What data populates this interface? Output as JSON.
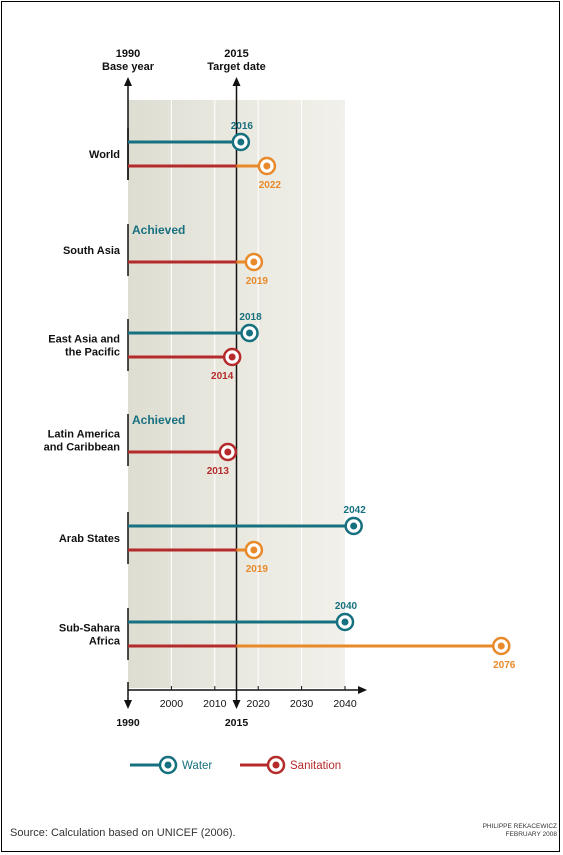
{
  "chart_data": {
    "type": "line",
    "title": "",
    "start_marker": {
      "year": "1990",
      "label": "Base year"
    },
    "target_marker": {
      "year": "2015",
      "label": "Target date"
    },
    "x_ticks": [
      "2000",
      "2010",
      "2020",
      "2030",
      "2040"
    ],
    "x_axis_labels": {
      "start": "1990",
      "target": "2015"
    },
    "xlim": [
      1990,
      2080
    ],
    "regions": [
      {
        "name": "World",
        "water": 2016,
        "sanitation": 2022,
        "water_label": "2016",
        "sanitation_label": "2022",
        "water_status": "",
        "sanitation_color": "orange"
      },
      {
        "name": "South Asia",
        "water": null,
        "sanitation": 2019,
        "water_label": "",
        "sanitation_label": "2019",
        "water_status": "Achieved",
        "sanitation_color": "orange"
      },
      {
        "name": "East Asia and the Pacific",
        "name_lines": [
          "East Asia and",
          "the Pacific"
        ],
        "water": 2018,
        "sanitation": 2014,
        "water_label": "2018",
        "sanitation_label": "2014",
        "water_status": "",
        "sanitation_color": "red"
      },
      {
        "name": "Latin America and Caribbean",
        "name_lines": [
          "Latin America",
          "and Caribbean"
        ],
        "water": null,
        "sanitation": 2013,
        "water_label": "",
        "sanitation_label": "2013",
        "water_status": "Achieved",
        "sanitation_color": "red"
      },
      {
        "name": "Arab States",
        "water": 2042,
        "sanitation": 2019,
        "water_label": "2042",
        "sanitation_label": "2019",
        "water_status": "",
        "sanitation_color": "orange"
      },
      {
        "name": "Sub-Sahara Africa",
        "name_lines": [
          "Sub-Sahara",
          "Africa"
        ],
        "water": 2040,
        "sanitation": 2076,
        "water_label": "2040",
        "sanitation_label": "2076",
        "water_status": "",
        "sanitation_color": "orange"
      }
    ],
    "legend": [
      {
        "name": "Water",
        "color": "#17707f"
      },
      {
        "name": "Sanitation",
        "color": "#b52b2b"
      }
    ],
    "colors": {
      "water": "#17707f",
      "sanitation": "#b52b2b",
      "sanitation_late": "#e8892a",
      "band": "#e9e8df",
      "band_dark": "#deddd2"
    }
  },
  "footer": {
    "source": "Source: Calculation based on UNICEF (2006).",
    "credit_line1": "PHILIPPE REKACEWICZ",
    "credit_line2": "FEBRUARY 2008"
  }
}
